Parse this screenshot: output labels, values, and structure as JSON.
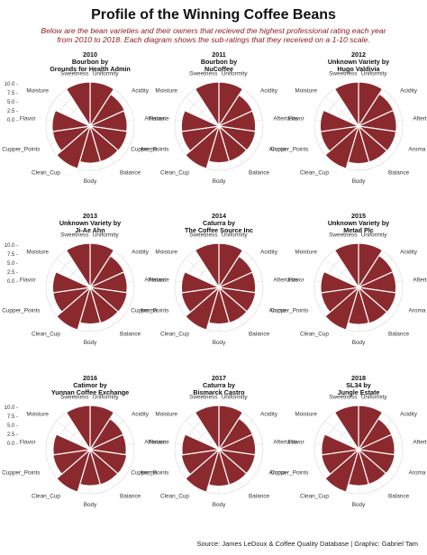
{
  "page": {
    "title": "Profile of the Winning Coffee Beans",
    "subtitle_line1": "Below are the bean varieties and their owners that recieved the highest professional rating each year",
    "subtitle_line2": "from 2010 to 2018. Each diagram shows the sub-ratings that they received on a 1-10 scale.",
    "caption": "Source: James LeDoux & Coffee Quality Database | Graphic: Gabriel Tam"
  },
  "colors": {
    "bar_fill": "#8b2a2e",
    "bar_stroke": "#ffffff",
    "grid": "#d9d9d9",
    "subtitle": "#8b1a1a"
  },
  "chart_data": {
    "type": "polar-bar",
    "categories": [
      "Uniformity",
      "Acidity",
      "Aftertaste",
      "Aroma",
      "Balance",
      "Body",
      "Clean_Cup",
      "Cupper_Points",
      "Flavor",
      "Moisture",
      "Sweetness"
    ],
    "y_ticks": [
      "0.0",
      "2.5",
      "5.0",
      "7.5",
      "10.0"
    ],
    "ylim": [
      0,
      10
    ],
    "panels": [
      {
        "year": "2010",
        "variety": "Bourbon by",
        "owner": "Grounds for Health Admin",
        "values": [
          10,
          8.6,
          8.4,
          8.5,
          8.4,
          8.4,
          10,
          8.6,
          8.6,
          0,
          10
        ]
      },
      {
        "year": "2011",
        "variety": "Bourbon by",
        "owner": "NuCoffee",
        "values": [
          10,
          8.4,
          8.3,
          8.4,
          8.3,
          8.3,
          10,
          8.6,
          8.5,
          0,
          10
        ]
      },
      {
        "year": "2012",
        "variety": "Unknown Variety by",
        "owner": "Hugo Valdivia",
        "values": [
          10,
          8.7,
          8.6,
          8.6,
          8.5,
          8.5,
          10,
          8.7,
          8.7,
          0,
          10
        ]
      },
      {
        "year": "2013",
        "variety": "Unknown Variety by",
        "owner": "Ji-Ae Ahn",
        "values": [
          10,
          8.5,
          8.4,
          8.5,
          8.4,
          8.3,
          10,
          8.5,
          8.5,
          0,
          10
        ]
      },
      {
        "year": "2014",
        "variety": "Caturra by",
        "owner": "The Coffee Source Inc",
        "values": [
          10,
          8.4,
          8.3,
          8.4,
          8.4,
          8.3,
          10,
          8.6,
          8.5,
          0,
          10
        ]
      },
      {
        "year": "2015",
        "variety": "Unknown Variety by",
        "owner": "Metad Plc",
        "values": [
          10,
          8.6,
          8.5,
          8.6,
          8.5,
          8.4,
          10,
          8.6,
          8.6,
          0,
          10
        ]
      },
      {
        "year": "2016",
        "variety": "Catimor by",
        "owner": "Yunnan Coffee Exchange",
        "values": [
          10,
          8.3,
          8.2,
          8.4,
          8.3,
          8.2,
          10,
          8.5,
          8.4,
          0,
          10
        ]
      },
      {
        "year": "2017",
        "variety": "Caturra by",
        "owner": "Bismarck Castro",
        "values": [
          10,
          8.4,
          8.3,
          8.3,
          8.3,
          8.3,
          10,
          8.6,
          8.4,
          0,
          10
        ]
      },
      {
        "year": "2018",
        "variety": "SL34 by",
        "owner": "Jungle Estate",
        "values": [
          10,
          8.3,
          8.2,
          8.3,
          8.2,
          8.2,
          10,
          8.5,
          8.4,
          0,
          10
        ]
      }
    ]
  }
}
